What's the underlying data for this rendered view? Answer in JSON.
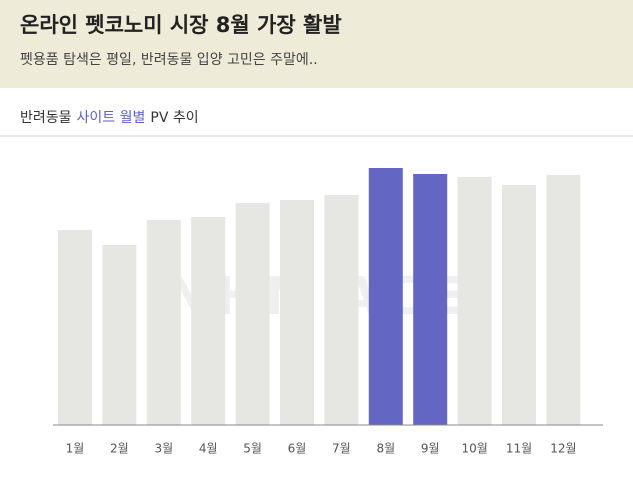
{
  "header": {
    "title": "온라인 펫코노미 시장 8월 가장 활발",
    "subtitle": "펫용품 탐색은 평일, 반려동물 입양 고민은 주말에.."
  },
  "chart_data": {
    "type": "bar",
    "title_parts": [
      "반려동물",
      "사이트 월별",
      "PV 추이"
    ],
    "title_part_colors": [
      "#333333",
      "#5b5fc7",
      "#333333"
    ],
    "watermark": "NHN ACE",
    "categories": [
      "1월",
      "2월",
      "3월",
      "4월",
      "5월",
      "6월",
      "7월",
      "8월",
      "9월",
      "10월",
      "11월",
      "12월"
    ],
    "values": [
      195,
      180,
      205,
      208,
      222,
      225,
      230,
      257,
      251,
      248,
      240,
      250
    ],
    "colors": [
      "#e6e6e2",
      "#e6e6e2",
      "#e6e6e2",
      "#e6e6e2",
      "#e6e6e2",
      "#e6e6e2",
      "#e6e6e2",
      "#6466c4",
      "#6466c4",
      "#e6e6e2",
      "#e6e6e2",
      "#e6e6e2"
    ],
    "ylim": [
      0,
      260
    ]
  }
}
